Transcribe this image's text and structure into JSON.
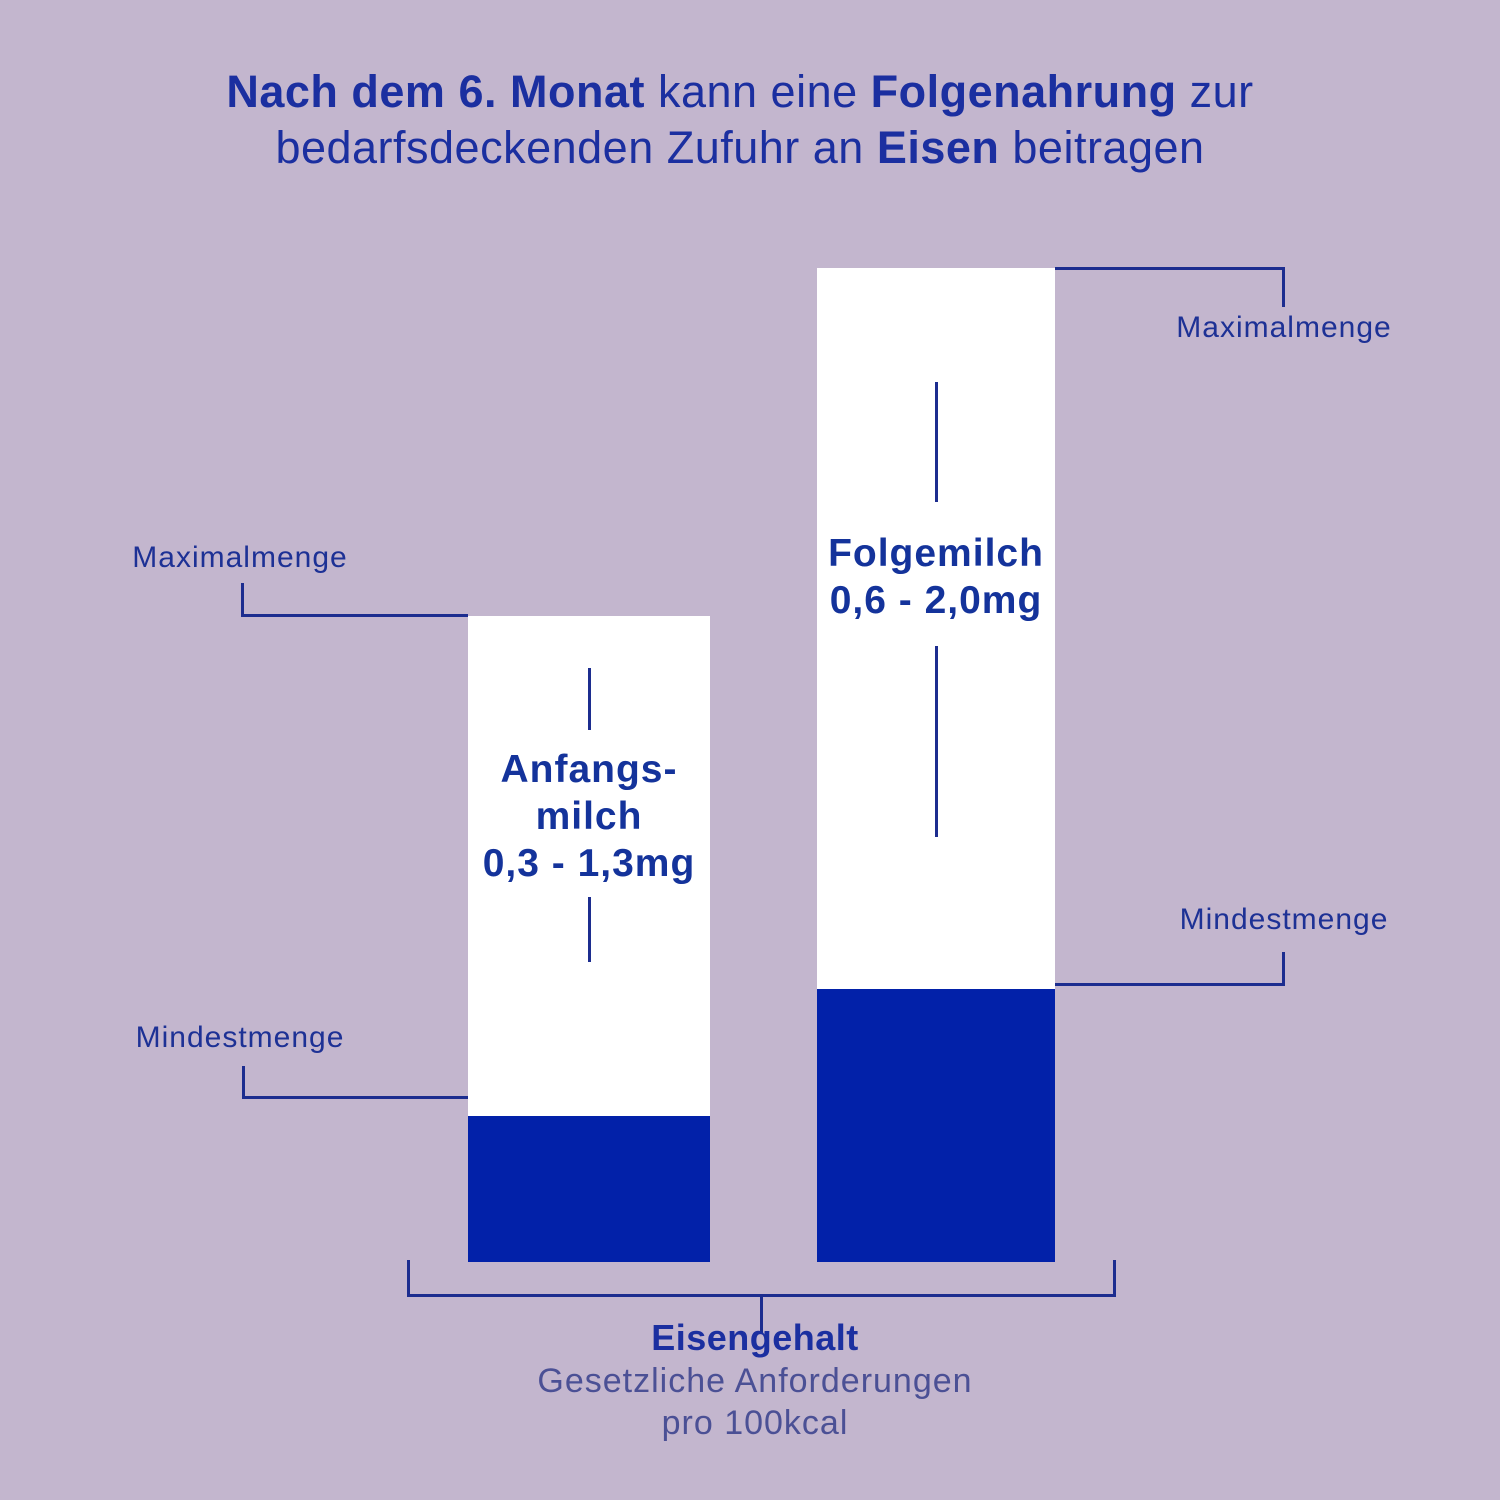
{
  "colors": {
    "background": "#c3b6ce",
    "bar_fill": "#ffffff",
    "bar_min_fill": "#0221a9",
    "text_primary": "#1b2fa0",
    "text_muted": "#4b5095",
    "connector_line": "#1c2d8f"
  },
  "title": {
    "l1_bold1": "Nach dem 6. Monat",
    "l1_reg1": " kann eine ",
    "l1_bold2": "Folgenahrung",
    "l1_reg2": " zur",
    "l2_reg1": "bedarfsdeckenden Zufuhr an ",
    "l2_bold1": "Eisen",
    "l2_reg2": " beitragen"
  },
  "labels": {
    "maximalmenge": "Maximalmenge",
    "mindestmenge": "Mindestmenge"
  },
  "bars": {
    "anfangsmilch": {
      "name_line1": "Anfangs-",
      "name_line2": "milch",
      "range": "0,3 - 1,3mg"
    },
    "folgemilch": {
      "name": "Folgemilch",
      "range": "0,6 - 2,0mg"
    }
  },
  "footer": {
    "title": "Eisengehalt",
    "subtitle1": "Gesetzliche Anforderungen",
    "subtitle2": "pro 100kcal"
  },
  "chart_data": {
    "type": "bar",
    "title": "Nach dem 6. Monat kann eine Folgenahrung zur bedarfsdeckenden Zufuhr an Eisen beitragen",
    "categories": [
      "Anfangsmilch",
      "Folgemilch"
    ],
    "series": [
      {
        "name": "Mindestmenge",
        "values": [
          0.3,
          0.6
        ]
      },
      {
        "name": "Maximalmenge",
        "values": [
          1.3,
          2.0
        ]
      }
    ],
    "units": "mg",
    "value_labels": [
      "0,3 - 1,3mg",
      "0,6 - 2,0mg"
    ],
    "xlabel": "Eisengehalt — Gesetzliche Anforderungen pro 100kcal",
    "ylim": [
      0,
      2.0
    ],
    "grid": false,
    "legend_position": "none",
    "annotations": [
      "Maximalmenge",
      "Mindestmenge"
    ]
  }
}
